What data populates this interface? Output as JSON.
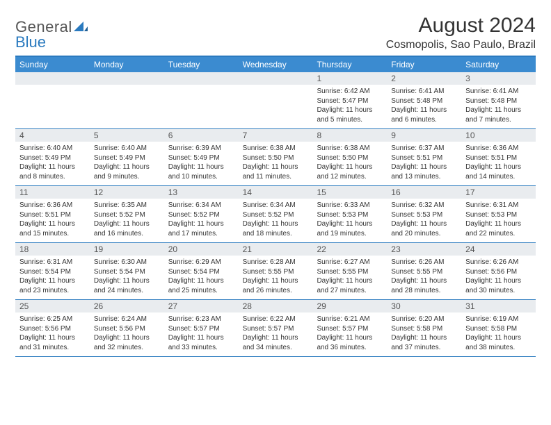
{
  "logo": {
    "text1": "General",
    "text2": "Blue"
  },
  "title": "August 2024",
  "location": "Cosmopolis, Sao Paulo, Brazil",
  "colors": {
    "header_bg": "#3b8bd0",
    "border": "#2a7abf",
    "daynum_bg": "#e9ecef",
    "text": "#333333"
  },
  "daysOfWeek": [
    "Sunday",
    "Monday",
    "Tuesday",
    "Wednesday",
    "Thursday",
    "Friday",
    "Saturday"
  ],
  "weeks": [
    [
      {},
      {},
      {},
      {},
      {
        "n": "1",
        "sr": "Sunrise: 6:42 AM",
        "ss": "Sunset: 5:47 PM",
        "d1": "Daylight: 11 hours",
        "d2": "and 5 minutes."
      },
      {
        "n": "2",
        "sr": "Sunrise: 6:41 AM",
        "ss": "Sunset: 5:48 PM",
        "d1": "Daylight: 11 hours",
        "d2": "and 6 minutes."
      },
      {
        "n": "3",
        "sr": "Sunrise: 6:41 AM",
        "ss": "Sunset: 5:48 PM",
        "d1": "Daylight: 11 hours",
        "d2": "and 7 minutes."
      }
    ],
    [
      {
        "n": "4",
        "sr": "Sunrise: 6:40 AM",
        "ss": "Sunset: 5:49 PM",
        "d1": "Daylight: 11 hours",
        "d2": "and 8 minutes."
      },
      {
        "n": "5",
        "sr": "Sunrise: 6:40 AM",
        "ss": "Sunset: 5:49 PM",
        "d1": "Daylight: 11 hours",
        "d2": "and 9 minutes."
      },
      {
        "n": "6",
        "sr": "Sunrise: 6:39 AM",
        "ss": "Sunset: 5:49 PM",
        "d1": "Daylight: 11 hours",
        "d2": "and 10 minutes."
      },
      {
        "n": "7",
        "sr": "Sunrise: 6:38 AM",
        "ss": "Sunset: 5:50 PM",
        "d1": "Daylight: 11 hours",
        "d2": "and 11 minutes."
      },
      {
        "n": "8",
        "sr": "Sunrise: 6:38 AM",
        "ss": "Sunset: 5:50 PM",
        "d1": "Daylight: 11 hours",
        "d2": "and 12 minutes."
      },
      {
        "n": "9",
        "sr": "Sunrise: 6:37 AM",
        "ss": "Sunset: 5:51 PM",
        "d1": "Daylight: 11 hours",
        "d2": "and 13 minutes."
      },
      {
        "n": "10",
        "sr": "Sunrise: 6:36 AM",
        "ss": "Sunset: 5:51 PM",
        "d1": "Daylight: 11 hours",
        "d2": "and 14 minutes."
      }
    ],
    [
      {
        "n": "11",
        "sr": "Sunrise: 6:36 AM",
        "ss": "Sunset: 5:51 PM",
        "d1": "Daylight: 11 hours",
        "d2": "and 15 minutes."
      },
      {
        "n": "12",
        "sr": "Sunrise: 6:35 AM",
        "ss": "Sunset: 5:52 PM",
        "d1": "Daylight: 11 hours",
        "d2": "and 16 minutes."
      },
      {
        "n": "13",
        "sr": "Sunrise: 6:34 AM",
        "ss": "Sunset: 5:52 PM",
        "d1": "Daylight: 11 hours",
        "d2": "and 17 minutes."
      },
      {
        "n": "14",
        "sr": "Sunrise: 6:34 AM",
        "ss": "Sunset: 5:52 PM",
        "d1": "Daylight: 11 hours",
        "d2": "and 18 minutes."
      },
      {
        "n": "15",
        "sr": "Sunrise: 6:33 AM",
        "ss": "Sunset: 5:53 PM",
        "d1": "Daylight: 11 hours",
        "d2": "and 19 minutes."
      },
      {
        "n": "16",
        "sr": "Sunrise: 6:32 AM",
        "ss": "Sunset: 5:53 PM",
        "d1": "Daylight: 11 hours",
        "d2": "and 20 minutes."
      },
      {
        "n": "17",
        "sr": "Sunrise: 6:31 AM",
        "ss": "Sunset: 5:53 PM",
        "d1": "Daylight: 11 hours",
        "d2": "and 22 minutes."
      }
    ],
    [
      {
        "n": "18",
        "sr": "Sunrise: 6:31 AM",
        "ss": "Sunset: 5:54 PM",
        "d1": "Daylight: 11 hours",
        "d2": "and 23 minutes."
      },
      {
        "n": "19",
        "sr": "Sunrise: 6:30 AM",
        "ss": "Sunset: 5:54 PM",
        "d1": "Daylight: 11 hours",
        "d2": "and 24 minutes."
      },
      {
        "n": "20",
        "sr": "Sunrise: 6:29 AM",
        "ss": "Sunset: 5:54 PM",
        "d1": "Daylight: 11 hours",
        "d2": "and 25 minutes."
      },
      {
        "n": "21",
        "sr": "Sunrise: 6:28 AM",
        "ss": "Sunset: 5:55 PM",
        "d1": "Daylight: 11 hours",
        "d2": "and 26 minutes."
      },
      {
        "n": "22",
        "sr": "Sunrise: 6:27 AM",
        "ss": "Sunset: 5:55 PM",
        "d1": "Daylight: 11 hours",
        "d2": "and 27 minutes."
      },
      {
        "n": "23",
        "sr": "Sunrise: 6:26 AM",
        "ss": "Sunset: 5:55 PM",
        "d1": "Daylight: 11 hours",
        "d2": "and 28 minutes."
      },
      {
        "n": "24",
        "sr": "Sunrise: 6:26 AM",
        "ss": "Sunset: 5:56 PM",
        "d1": "Daylight: 11 hours",
        "d2": "and 30 minutes."
      }
    ],
    [
      {
        "n": "25",
        "sr": "Sunrise: 6:25 AM",
        "ss": "Sunset: 5:56 PM",
        "d1": "Daylight: 11 hours",
        "d2": "and 31 minutes."
      },
      {
        "n": "26",
        "sr": "Sunrise: 6:24 AM",
        "ss": "Sunset: 5:56 PM",
        "d1": "Daylight: 11 hours",
        "d2": "and 32 minutes."
      },
      {
        "n": "27",
        "sr": "Sunrise: 6:23 AM",
        "ss": "Sunset: 5:57 PM",
        "d1": "Daylight: 11 hours",
        "d2": "and 33 minutes."
      },
      {
        "n": "28",
        "sr": "Sunrise: 6:22 AM",
        "ss": "Sunset: 5:57 PM",
        "d1": "Daylight: 11 hours",
        "d2": "and 34 minutes."
      },
      {
        "n": "29",
        "sr": "Sunrise: 6:21 AM",
        "ss": "Sunset: 5:57 PM",
        "d1": "Daylight: 11 hours",
        "d2": "and 36 minutes."
      },
      {
        "n": "30",
        "sr": "Sunrise: 6:20 AM",
        "ss": "Sunset: 5:58 PM",
        "d1": "Daylight: 11 hours",
        "d2": "and 37 minutes."
      },
      {
        "n": "31",
        "sr": "Sunrise: 6:19 AM",
        "ss": "Sunset: 5:58 PM",
        "d1": "Daylight: 11 hours",
        "d2": "and 38 minutes."
      }
    ]
  ]
}
